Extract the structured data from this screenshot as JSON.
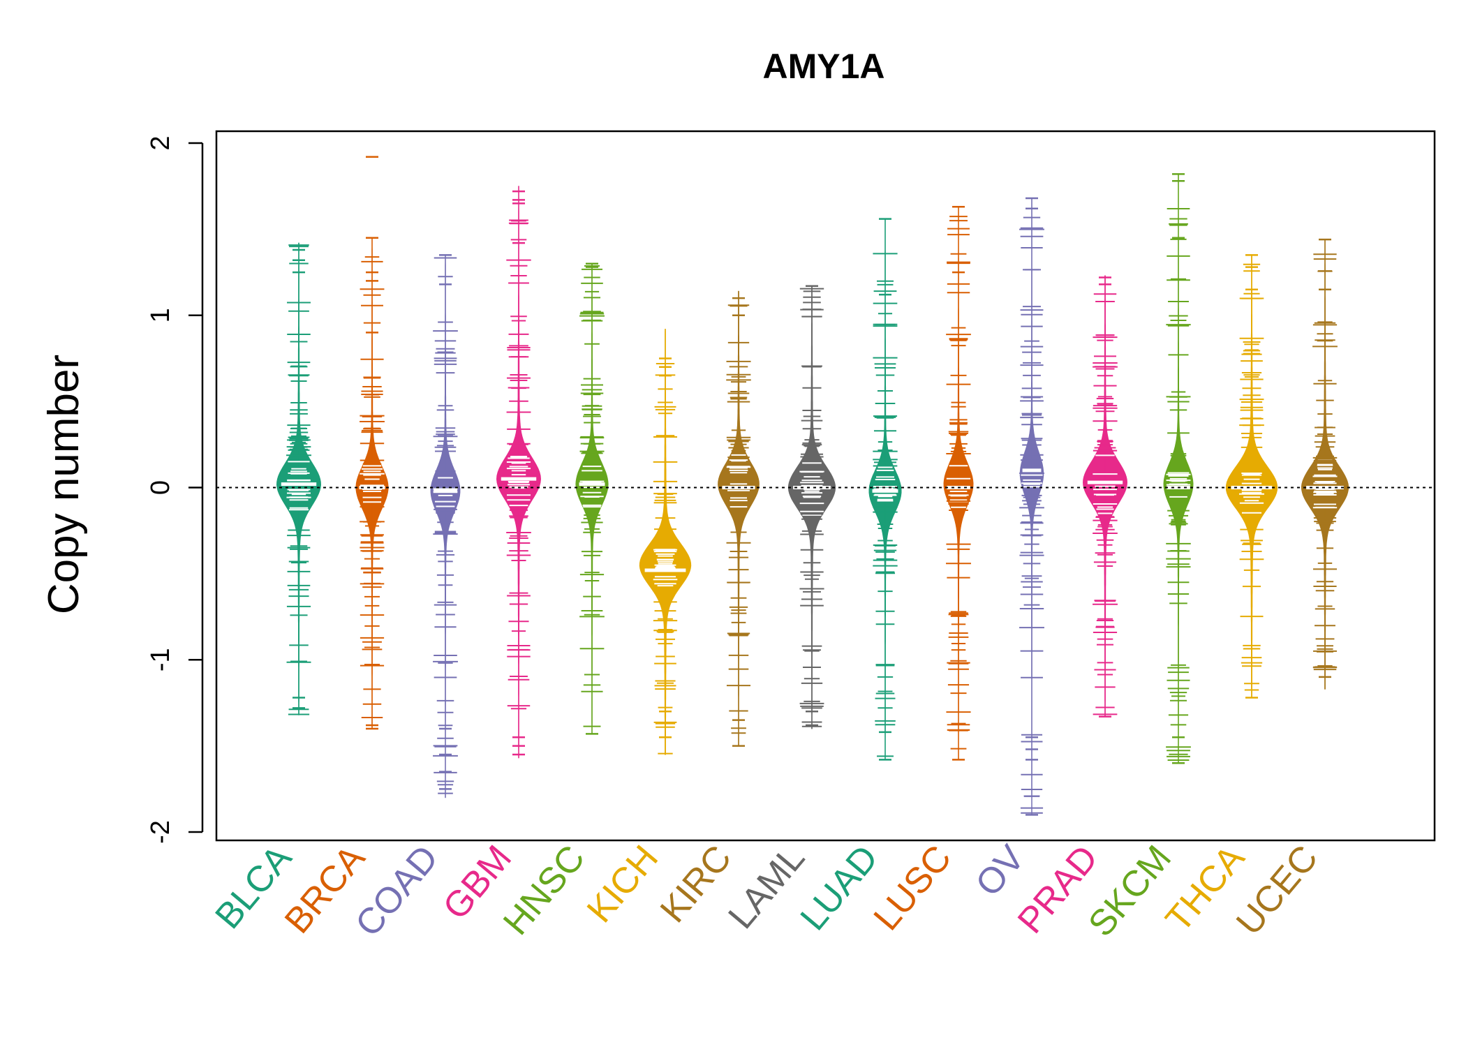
{
  "chart_data": {
    "type": "beanplot",
    "title": "AMY1A",
    "ylabel": "Copy number",
    "xlabel": "",
    "ylim": [
      -2.05,
      2.05
    ],
    "yticks": [
      -2,
      -1,
      0,
      1,
      2
    ],
    "reference_line": 0,
    "categories": [
      "BLCA",
      "BRCA",
      "COAD",
      "GBM",
      "HNSC",
      "KICH",
      "KIRC",
      "LAML",
      "LUAD",
      "LUSC",
      "OV",
      "PRAD",
      "SKCM",
      "THCA",
      "UCEC"
    ],
    "colors": [
      "#1B9E77",
      "#D95F02",
      "#7570B3",
      "#E7298A",
      "#66A61E",
      "#E6AB02",
      "#A6761D",
      "#666666",
      "#1B9E77",
      "#D95F02",
      "#7570B3",
      "#E7298A",
      "#66A61E",
      "#E6AB02",
      "#A6761D"
    ],
    "series": [
      {
        "category": "BLCA",
        "min": -1.32,
        "max": 1.42,
        "mode": 0.02,
        "width": 0.3,
        "median": 0.02,
        "outliers": [
          1.38,
          1.32,
          1.25,
          -1.22,
          -1.28
        ]
      },
      {
        "category": "BRCA",
        "min": -1.4,
        "max": 1.45,
        "mode": 0.0,
        "width": 0.22,
        "median": 0.0,
        "outliers": [
          1.92,
          1.45,
          1.25,
          1.2,
          0.9,
          -1.38,
          -1.4
        ]
      },
      {
        "category": "COAD",
        "min": -1.8,
        "max": 1.35,
        "mode": -0.02,
        "width": 0.2,
        "median": -0.02,
        "outliers": [
          1.35,
          1.18,
          -1.4,
          -1.55,
          -1.65,
          -1.75
        ]
      },
      {
        "category": "GBM",
        "min": -1.57,
        "max": 1.75,
        "mode": 0.05,
        "width": 0.3,
        "median": 0.05,
        "outliers": [
          1.72,
          1.67,
          1.65,
          1.55,
          1.42,
          -1.45,
          -1.5,
          -1.55
        ]
      },
      {
        "category": "HNSC",
        "min": -1.43,
        "max": 1.3,
        "mode": 0.02,
        "width": 0.22,
        "median": 0.02,
        "outliers": [
          1.3,
          1.28,
          -1.43
        ]
      },
      {
        "category": "KICH",
        "min": -1.55,
        "max": 0.92,
        "mode": -0.45,
        "width": 0.35,
        "median": -0.48,
        "outliers": [
          0.75,
          0.7,
          0.65,
          -1.3,
          -1.45
        ]
      },
      {
        "category": "KIRC",
        "min": -1.5,
        "max": 1.14,
        "mode": 0.02,
        "width": 0.28,
        "median": 0.0,
        "outliers": [
          1.1,
          1.0,
          -1.35,
          -1.5
        ]
      },
      {
        "category": "LAML",
        "min": -1.4,
        "max": 1.17,
        "mode": 0.0,
        "width": 0.32,
        "median": 0.0,
        "outliers": [
          1.17,
          -1.3,
          -1.38
        ]
      },
      {
        "category": "LUAD",
        "min": -1.58,
        "max": 1.56,
        "mode": -0.02,
        "width": 0.22,
        "median": -0.02,
        "outliers": [
          1.56,
          1.12,
          -1.42,
          -1.58
        ]
      },
      {
        "category": "LUSC",
        "min": -1.58,
        "max": 1.63,
        "mode": 0.02,
        "width": 0.2,
        "median": 0.0,
        "outliers": [
          1.63,
          1.25,
          -1.58
        ]
      },
      {
        "category": "OV",
        "min": -1.9,
        "max": 1.68,
        "mode": 0.08,
        "width": 0.16,
        "median": 0.1,
        "outliers": [
          1.68,
          1.62,
          -1.45,
          -1.52,
          -1.58,
          -1.9
        ]
      },
      {
        "category": "PRAD",
        "min": -1.33,
        "max": 1.23,
        "mode": 0.03,
        "width": 0.3,
        "median": 0.03,
        "outliers": [
          1.22,
          1.18,
          -1.33
        ]
      },
      {
        "category": "SKCM",
        "min": -1.6,
        "max": 1.82,
        "mode": 0.02,
        "width": 0.2,
        "median": 0.0,
        "outliers": [
          1.82,
          1.78,
          1.45,
          -1.45,
          -1.6
        ]
      },
      {
        "category": "THCA",
        "min": -1.22,
        "max": 1.35,
        "mode": 0.0,
        "width": 0.35,
        "median": 0.0,
        "outliers": [
          1.35,
          1.28,
          1.15,
          -1.22
        ]
      },
      {
        "category": "UCEC",
        "min": -1.17,
        "max": 1.44,
        "mode": 0.0,
        "width": 0.32,
        "median": 0.0,
        "outliers": [
          1.44,
          1.15,
          -1.1
        ]
      }
    ]
  }
}
